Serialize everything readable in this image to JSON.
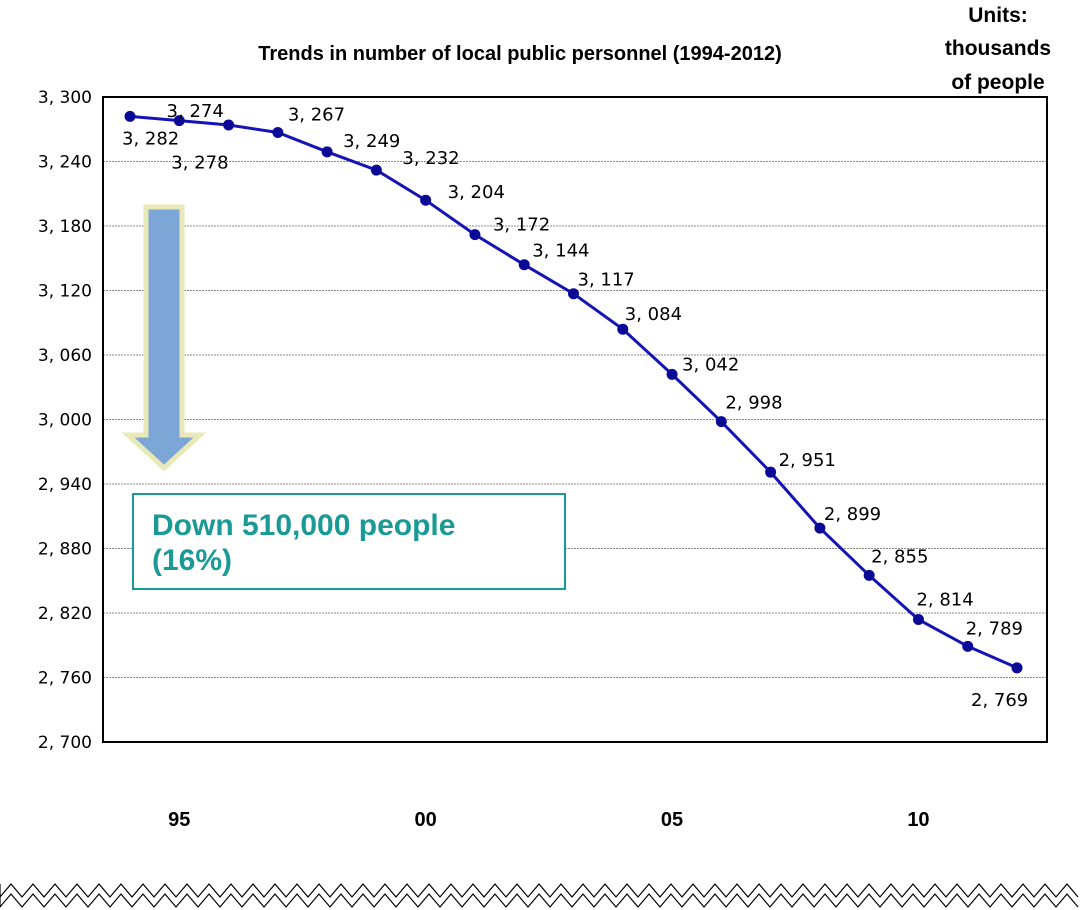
{
  "chart_data": {
    "type": "line",
    "title": "Trends in number of local public personnel (1994-2012)",
    "units_label": [
      "Units:",
      "thousands",
      "of people"
    ],
    "x": [
      1994,
      1995,
      1996,
      1997,
      1998,
      1999,
      2000,
      2001,
      2002,
      2003,
      2004,
      2005,
      2006,
      2007,
      2008,
      2009,
      2010,
      2011,
      2012
    ],
    "values": [
      3282,
      3278,
      3274,
      3267,
      3249,
      3232,
      3204,
      3172,
      3144,
      3117,
      3084,
      3042,
      2998,
      2951,
      2899,
      2855,
      2814,
      2789,
      2769
    ],
    "data_labels": [
      "3, 282",
      "3, 278",
      "3, 274",
      "3, 267",
      "3, 249",
      "3, 232",
      "3, 204",
      "3, 172",
      "3, 144",
      "3, 117",
      "3, 084",
      "3, 042",
      "2, 998",
      "2, 951",
      "2, 899",
      "2, 855",
      "2, 814",
      "2, 789",
      "2, 769"
    ],
    "ylim": [
      2700,
      3300
    ],
    "yticks": [
      3300,
      3240,
      3180,
      3120,
      3060,
      3000,
      2940,
      2880,
      2820,
      2760,
      2700
    ],
    "ytick_labels": [
      "3, 300",
      "3, 240",
      "3, 180",
      "3, 120",
      "3, 060",
      "3, 000",
      "2, 940",
      "2, 880",
      "2, 820",
      "2, 760",
      "2, 700"
    ],
    "xticks": [
      {
        "year": 1995,
        "label": "95"
      },
      {
        "year": 2000,
        "label": "00"
      },
      {
        "year": 2005,
        "label": "05"
      },
      {
        "year": 2010,
        "label": "10"
      }
    ],
    "grid": true,
    "annotation": [
      "Down 510,000 people",
      "(16%)"
    ],
    "colors": {
      "line": "#1414b4",
      "marker": "#0a0a96",
      "grid": "#888888",
      "arrow_fill": "#7ba6d6",
      "arrow_stroke": "#e8e8b8",
      "callout_border": "#1a9a95",
      "callout_text": "#1a9a95"
    }
  }
}
